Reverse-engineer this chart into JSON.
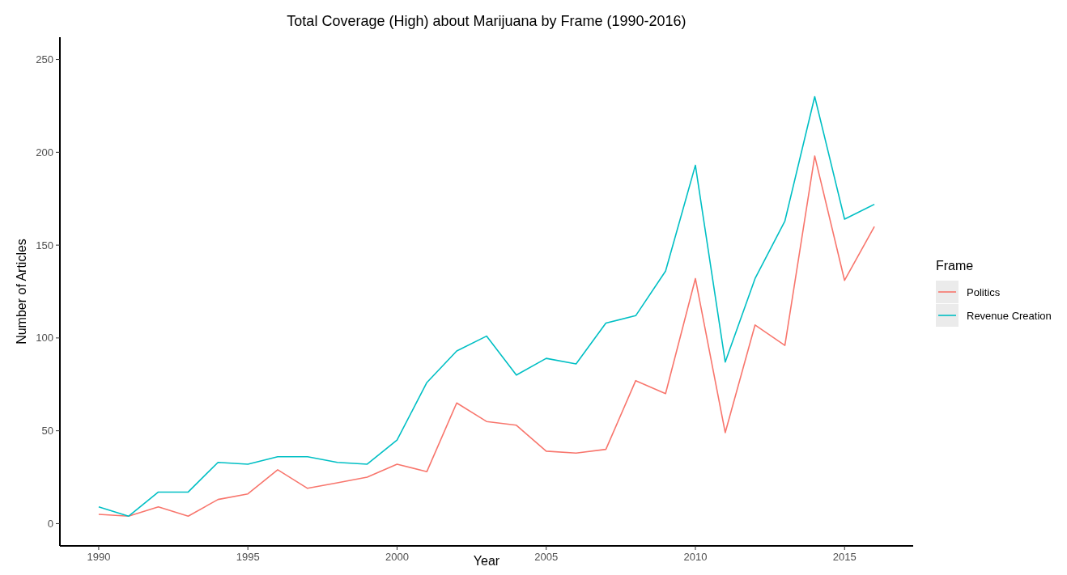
{
  "chart_data": {
    "type": "line",
    "title": "Total Coverage (High) about Marijuana by Frame (1990-2016)",
    "xlabel": "Year",
    "ylabel": "Number of Articles",
    "legend_title": "Frame",
    "legend": "right",
    "grid": false,
    "x": [
      1990,
      1991,
      1992,
      1993,
      1994,
      1995,
      1996,
      1997,
      1998,
      1999,
      2000,
      2001,
      2002,
      2003,
      2004,
      2005,
      2006,
      2007,
      2008,
      2009,
      2010,
      2011,
      2012,
      2013,
      2014,
      2015,
      2016
    ],
    "xlim": [
      1988.7,
      2017.3
    ],
    "xticks": [
      1990,
      1995,
      2000,
      2005,
      2010,
      2015
    ],
    "ylim": [
      -12,
      262
    ],
    "yticks": [
      0,
      50,
      100,
      150,
      200,
      250
    ],
    "series": [
      {
        "name": "Politics",
        "color": "#f8766d",
        "values": [
          5,
          4,
          9,
          4,
          13,
          16,
          29,
          19,
          22,
          25,
          32,
          28,
          65,
          55,
          53,
          39,
          38,
          40,
          77,
          70,
          132,
          49,
          107,
          96,
          198,
          131,
          160
        ]
      },
      {
        "name": "Revenue Creation",
        "color": "#00bfc4",
        "values": [
          9,
          4,
          17,
          17,
          33,
          32,
          36,
          36,
          33,
          32,
          45,
          76,
          93,
          101,
          80,
          89,
          86,
          108,
          112,
          136,
          193,
          87,
          132,
          163,
          230,
          164,
          172
        ]
      }
    ]
  }
}
